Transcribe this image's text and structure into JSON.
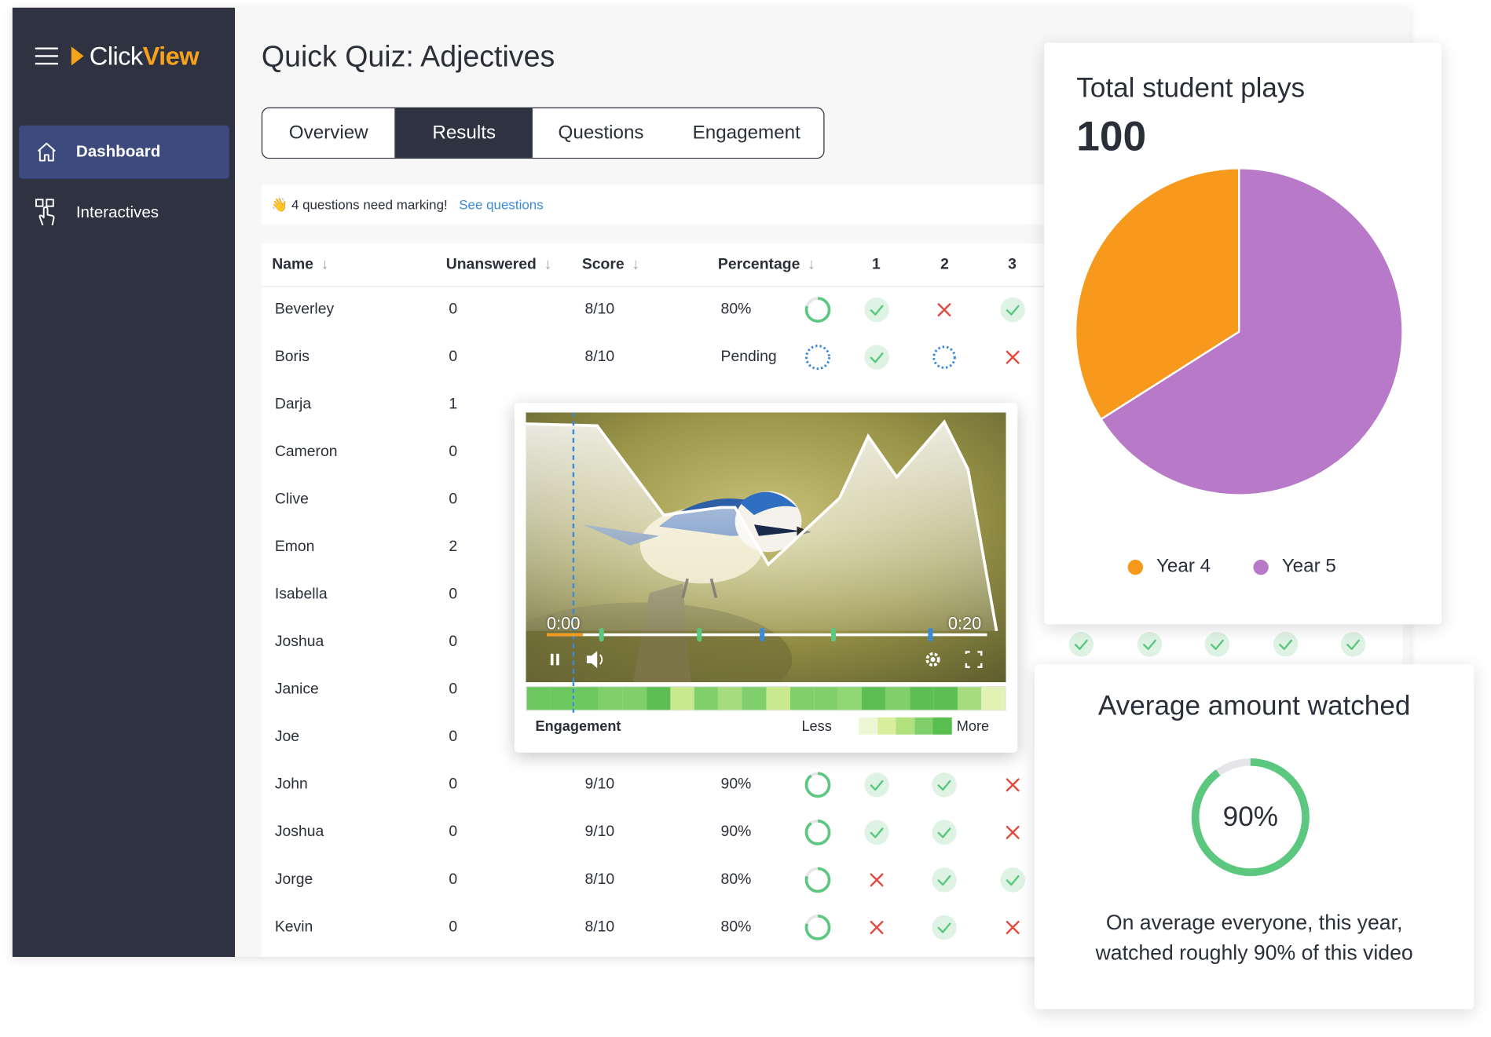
{
  "app": {
    "logo_part1": "Click",
    "logo_part2": "View",
    "title": "Quick Quiz: Adjectives"
  },
  "sidebar": {
    "items": [
      {
        "label": "Dashboard",
        "icon": "home-icon",
        "active": true
      },
      {
        "label": "Interactives",
        "icon": "touch-icon",
        "active": false
      }
    ]
  },
  "tabs": [
    {
      "label": "Overview",
      "selected": false
    },
    {
      "label": "Results",
      "selected": true
    },
    {
      "label": "Questions",
      "selected": false
    },
    {
      "label": "Engagement",
      "selected": false
    }
  ],
  "notice": {
    "emoji": "👋",
    "message": "4 questions need marking!",
    "link": "See questions"
  },
  "table": {
    "headers": {
      "name": "Name",
      "unanswered": "Unanswered",
      "score": "Score",
      "percentage": "Percentage",
      "q1": "1",
      "q2": "2",
      "q3": "3"
    },
    "rows": [
      {
        "name": "Beverley",
        "unanswered": "0",
        "score": "8/10",
        "percentage": "80%",
        "progress": 0.8,
        "q": [
          "check",
          "cross",
          "check"
        ]
      },
      {
        "name": "Boris",
        "unanswered": "0",
        "score": "8/10",
        "percentage": "Pending",
        "progress": null,
        "q": [
          "check",
          "pending",
          "cross"
        ]
      },
      {
        "name": "Darja",
        "unanswered": "1",
        "score": "",
        "percentage": "",
        "progress": null,
        "q": [
          "",
          "",
          ""
        ]
      },
      {
        "name": "Cameron",
        "unanswered": "0",
        "score": "",
        "percentage": "",
        "progress": null,
        "q": [
          "",
          "",
          ""
        ]
      },
      {
        "name": "Clive",
        "unanswered": "0",
        "score": "",
        "percentage": "",
        "progress": null,
        "q": [
          "",
          "",
          ""
        ]
      },
      {
        "name": "Emon",
        "unanswered": "2",
        "score": "",
        "percentage": "",
        "progress": null,
        "q": [
          "",
          "",
          ""
        ]
      },
      {
        "name": "Isabella",
        "unanswered": "0",
        "score": "",
        "percentage": "",
        "progress": null,
        "q": [
          "",
          "",
          ""
        ]
      },
      {
        "name": "Joshua",
        "unanswered": "0",
        "score": "",
        "percentage": "",
        "progress": null,
        "q": [
          "",
          "",
          ""
        ]
      },
      {
        "name": "Janice",
        "unanswered": "0",
        "score": "",
        "percentage": "",
        "progress": null,
        "q": [
          "",
          "",
          ""
        ]
      },
      {
        "name": "Joe",
        "unanswered": "0",
        "score": "",
        "percentage": "",
        "progress": null,
        "q": [
          "",
          "",
          ""
        ]
      },
      {
        "name": "John",
        "unanswered": "0",
        "score": "9/10",
        "percentage": "90%",
        "progress": 0.9,
        "q": [
          "check",
          "check",
          "cross"
        ]
      },
      {
        "name": "Joshua",
        "unanswered": "0",
        "score": "9/10",
        "percentage": "90%",
        "progress": 0.9,
        "q": [
          "check",
          "check",
          "cross"
        ]
      },
      {
        "name": "Jorge",
        "unanswered": "0",
        "score": "8/10",
        "percentage": "80%",
        "progress": 0.8,
        "q": [
          "cross",
          "check",
          "check"
        ]
      },
      {
        "name": "Kevin",
        "unanswered": "0",
        "score": "8/10",
        "percentage": "80%",
        "progress": 0.8,
        "q": [
          "cross",
          "check",
          "cross"
        ]
      }
    ]
  },
  "video": {
    "start_time": "0:00",
    "end_time": "0:20",
    "engagement_label": "Engagement",
    "less_label": "Less",
    "more_label": "More",
    "heat_colors": [
      "#6cc85e",
      "#6cc85e",
      "#6cc85e",
      "#7fd06c",
      "#7fd06c",
      "#5dbf53",
      "#c9e98f",
      "#7fd06c",
      "#a5dc7d",
      "#7fd06c",
      "#c9e98f",
      "#7fd06c",
      "#7fd06c",
      "#8fd874",
      "#5dbf53",
      "#7fd06c",
      "#5dbf53",
      "#5dbf53",
      "#a5dc7d",
      "#e2f1b4"
    ],
    "legend_colors": [
      "#eef7d5",
      "#d6ee9e",
      "#b1e07e",
      "#7fd06c",
      "#58bf4e"
    ]
  },
  "plays": {
    "title": "Total student plays",
    "value": "100",
    "legend": [
      {
        "label": "Year 4",
        "color": "#f7991c"
      },
      {
        "label": "Year 5",
        "color": "#b779c8"
      }
    ]
  },
  "chart_data": {
    "type": "pie",
    "categories": [
      "Year 4",
      "Year 5"
    ],
    "values": [
      34,
      66
    ],
    "colors": [
      "#f7991c",
      "#b779c8"
    ],
    "title": "Total student plays",
    "legend_position": "bottom"
  },
  "average": {
    "title": "Average amount watched",
    "value_label": "90%",
    "progress": 0.9,
    "description_line1": "On average everyone, this year,",
    "description_line2": "watched roughly 90% of this video"
  },
  "colors": {
    "sidebar_bg": "#2f3241",
    "active_nav": "#3c4a7d",
    "accent_orange": "#f7a21b",
    "check_green": "#5cc77f",
    "cross_red": "#e34a3f",
    "pending_blue": "#3a8ad8",
    "link_blue": "#3a8ad8"
  }
}
